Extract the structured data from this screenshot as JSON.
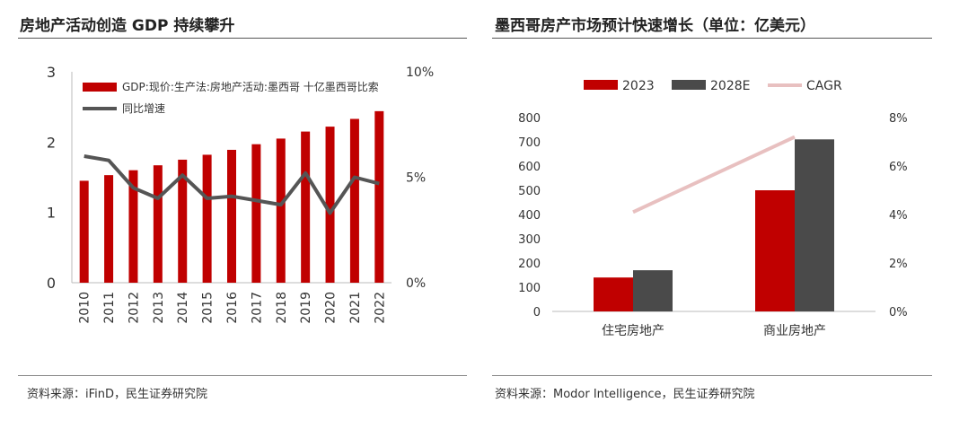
{
  "left": {
    "title": "房地产活动创造 GDP 持续攀升",
    "source": "资料来源：iFinD，民生证券研究院"
  },
  "right": {
    "title": "墨西哥房产市场预计快速增长（单位：亿美元）",
    "source": "资料来源：Modor Intelligence，民生证券研究院"
  },
  "colors": {
    "bar_red": "#c00000",
    "bar_gray": "#4a4a4a",
    "line_gray": "#555555",
    "cagr_pink": "#e8c0c0"
  },
  "chart_data": [
    {
      "type": "bar",
      "categories": [
        "2010",
        "2011",
        "2012",
        "2013",
        "2014",
        "2015",
        "2016",
        "2017",
        "2018",
        "2019",
        "2020",
        "2021",
        "2022"
      ],
      "series": [
        {
          "name": "GDP:现价:生产法:房地产活动:墨西哥 十亿墨西哥比索",
          "axis": "left",
          "type": "bar",
          "values": [
            1.45,
            1.53,
            1.6,
            1.67,
            1.75,
            1.82,
            1.89,
            1.97,
            2.05,
            2.15,
            2.22,
            2.33,
            2.44
          ]
        },
        {
          "name": "同比增速",
          "axis": "right",
          "type": "line",
          "values": [
            0.06,
            0.058,
            0.045,
            0.04,
            0.051,
            0.04,
            0.041,
            0.039,
            0.037,
            0.052,
            0.033,
            0.05,
            0.047
          ]
        }
      ],
      "y_left": {
        "ylim": [
          0,
          3
        ],
        "ticks": [
          "0",
          "1",
          "2",
          "3"
        ]
      },
      "y_right": {
        "ylim": [
          0,
          0.1
        ],
        "ticks": [
          "0%",
          "5%",
          "10%"
        ]
      },
      "legend": "top-left"
    },
    {
      "type": "bar",
      "categories": [
        "住宅房地产",
        "商业房地产"
      ],
      "series": [
        {
          "name": "2023",
          "axis": "left",
          "type": "bar",
          "values": [
            140,
            500
          ]
        },
        {
          "name": "2028E",
          "axis": "left",
          "type": "bar",
          "values": [
            170,
            710
          ]
        },
        {
          "name": "CAGR",
          "axis": "right",
          "type": "line",
          "values": [
            0.041,
            0.072
          ]
        }
      ],
      "y_left": {
        "ylim": [
          0,
          800
        ],
        "ticks": [
          "0",
          "100",
          "200",
          "300",
          "400",
          "500",
          "600",
          "700",
          "800"
        ]
      },
      "y_right": {
        "ylim": [
          0,
          0.08
        ],
        "ticks": [
          "0%",
          "2%",
          "4%",
          "6%",
          "8%"
        ]
      },
      "legend": "top"
    }
  ]
}
